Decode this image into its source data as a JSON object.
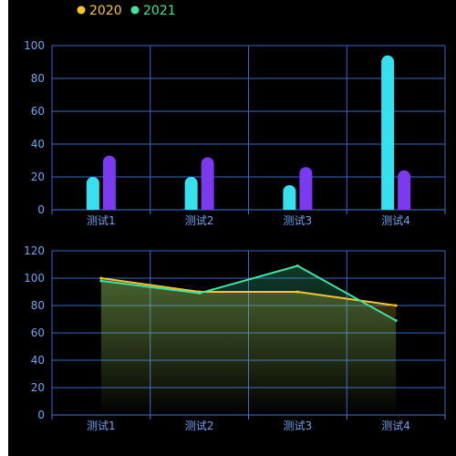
{
  "colors": {
    "axis": "#3f76e0",
    "grid": "#3569c9",
    "tick_text": "#6fa4f2",
    "bar_2020": "#36e0ee",
    "bar_2021": "#7b3af0",
    "line_2020": "#f6c52c",
    "line_2021": "#3fe3a0",
    "legend_2020": "#f6c52c",
    "legend_2021": "#3fe3a0"
  },
  "legend": [
    {
      "label": "2020",
      "color": "#f6c52c"
    },
    {
      "label": "2021",
      "color": "#3fe3a0"
    }
  ],
  "chart_data": [
    {
      "type": "bar",
      "categories": [
        "测试1",
        "测试2",
        "测试3",
        "测试4"
      ],
      "series": [
        {
          "name": "2020",
          "values": [
            20,
            20,
            15,
            94
          ]
        },
        {
          "name": "2021",
          "values": [
            33,
            32,
            26,
            24
          ]
        }
      ],
      "yticks": [
        0,
        20,
        40,
        60,
        80,
        100
      ],
      "ylim": [
        0,
        100
      ],
      "grid": true
    },
    {
      "type": "area",
      "categories": [
        "测试1",
        "测试2",
        "测试3",
        "测试4"
      ],
      "series": [
        {
          "name": "2020",
          "values": [
            100,
            90,
            90,
            80
          ]
        },
        {
          "name": "2021",
          "values": [
            98,
            89,
            109,
            69
          ]
        }
      ],
      "yticks": [
        0,
        20,
        40,
        60,
        80,
        100,
        120
      ],
      "ylim": [
        0,
        120
      ],
      "grid": true
    }
  ]
}
